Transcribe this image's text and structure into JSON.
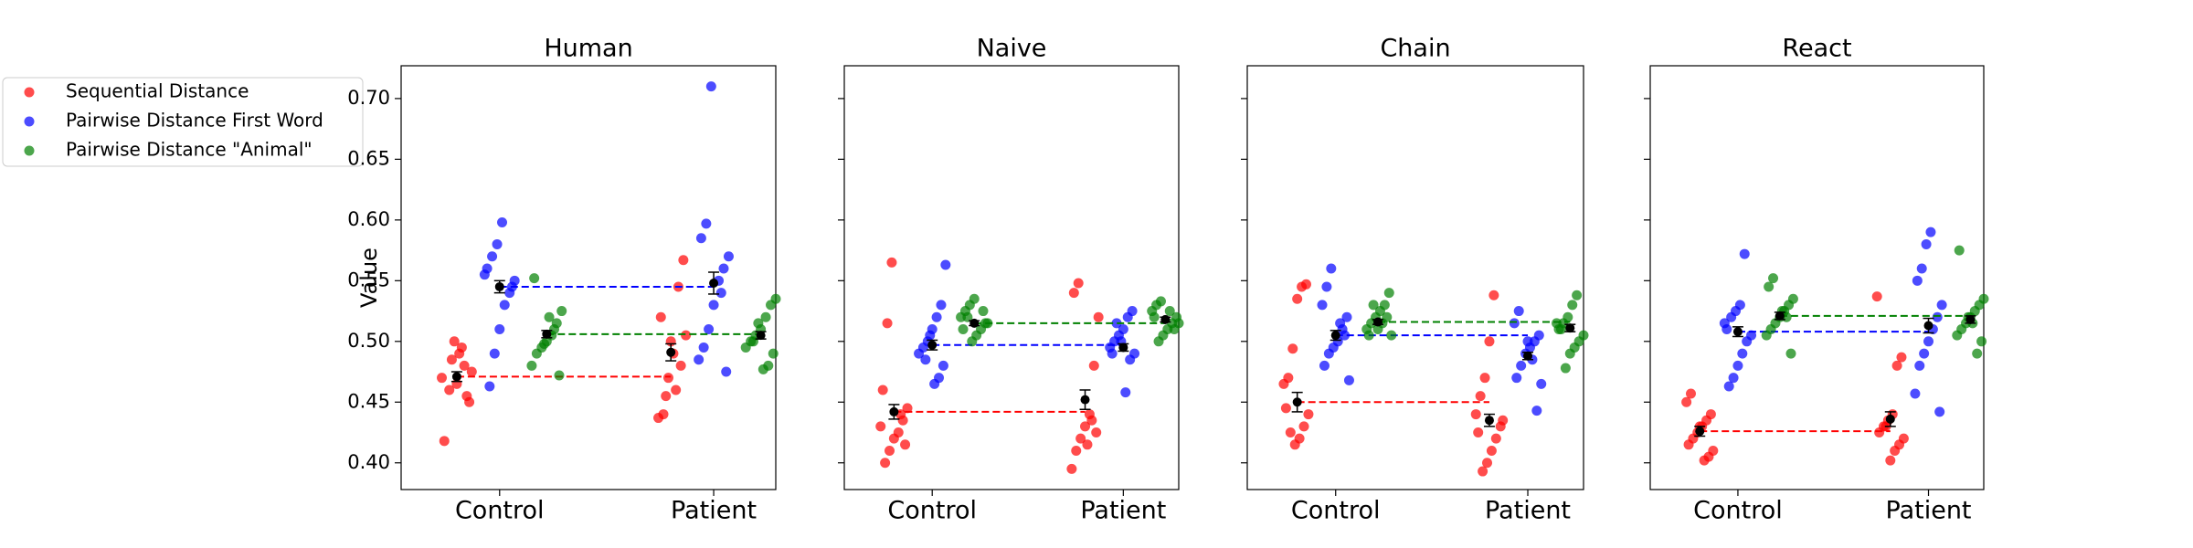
{
  "chart_data": {
    "type": "strip",
    "ylabel": "Value",
    "ylim": [
      0.378,
      0.727
    ],
    "yticks": [
      {
        "value": 0.4,
        "label": "0.40"
      },
      {
        "value": 0.45,
        "label": "0.45"
      },
      {
        "value": 0.5,
        "label": "0.50"
      },
      {
        "value": 0.55,
        "label": "0.55"
      },
      {
        "value": 0.6,
        "label": "0.60"
      },
      {
        "value": 0.65,
        "label": "0.65"
      },
      {
        "value": 0.7,
        "label": "0.70"
      }
    ],
    "categories": [
      "Control",
      "Patient"
    ],
    "legend": "outside upper left",
    "series": [
      {
        "name": "Sequential Distance",
        "color": "#ff0000"
      },
      {
        "name": "Pairwise Distance First Word",
        "color": "#0000ff"
      },
      {
        "name": "Pairwise Distance \"Animal\"",
        "color": "#008000"
      }
    ],
    "panels": [
      {
        "title": "Human",
        "series": [
          {
            "values": [
              [
                0.47,
                0.45,
                0.48,
                0.49,
                0.5,
                0.46,
                0.418,
                0.475,
                0.455,
                0.495,
                0.465,
                0.485
              ],
              [
                0.567,
                0.545,
                0.49,
                0.47,
                0.44,
                0.437,
                0.505,
                0.48,
                0.46,
                0.5,
                0.455,
                0.52
              ]
            ],
            "means": [
              0.471,
              0.491
            ],
            "errors": [
              0.004,
              0.007
            ]
          },
          {
            "values": [
              [
                0.598,
                0.58,
                0.57,
                0.56,
                0.55,
                0.54,
                0.53,
                0.51,
                0.49,
                0.463,
                0.555,
                0.545
              ],
              [
                0.71,
                0.597,
                0.585,
                0.57,
                0.56,
                0.55,
                0.53,
                0.51,
                0.495,
                0.485,
                0.475,
                0.54
              ]
            ],
            "means": [
              0.545,
              0.548
            ],
            "errors": [
              0.005,
              0.009
            ]
          },
          {
            "values": [
              [
                0.552,
                0.525,
                0.515,
                0.505,
                0.5,
                0.495,
                0.49,
                0.48,
                0.472,
                0.51,
                0.52,
                0.498
              ],
              [
                0.535,
                0.53,
                0.52,
                0.51,
                0.505,
                0.5,
                0.495,
                0.49,
                0.48,
                0.477,
                0.515,
                0.5
              ]
            ],
            "means": [
              0.506,
              0.505
            ],
            "errors": [
              0.003,
              0.003
            ]
          }
        ]
      },
      {
        "title": "Naive",
        "series": [
          {
            "values": [
              [
                0.565,
                0.515,
                0.46,
                0.445,
                0.435,
                0.425,
                0.42,
                0.41,
                0.4,
                0.43,
                0.415,
                0.44
              ],
              [
                0.548,
                0.54,
                0.52,
                0.48,
                0.44,
                0.43,
                0.42,
                0.41,
                0.395,
                0.425,
                0.435,
                0.415
              ]
            ],
            "means": [
              0.442,
              0.452
            ],
            "errors": [
              0.006,
              0.008
            ]
          },
          {
            "values": [
              [
                0.563,
                0.53,
                0.52,
                0.51,
                0.5,
                0.495,
                0.49,
                0.48,
                0.47,
                0.465,
                0.505,
                0.485
              ],
              [
                0.525,
                0.52,
                0.51,
                0.505,
                0.5,
                0.495,
                0.49,
                0.485,
                0.458,
                0.5,
                0.515,
                0.49
              ]
            ],
            "means": [
              0.497,
              0.495
            ],
            "errors": [
              0.004,
              0.003
            ]
          },
          {
            "values": [
              [
                0.535,
                0.53,
                0.525,
                0.52,
                0.515,
                0.51,
                0.505,
                0.5,
                0.52,
                0.51,
                0.515,
                0.525
              ],
              [
                0.533,
                0.53,
                0.525,
                0.52,
                0.515,
                0.51,
                0.505,
                0.5,
                0.52,
                0.515,
                0.51,
                0.525
              ]
            ],
            "means": [
              0.515,
              0.518
            ],
            "errors": [
              0.002,
              0.002
            ]
          }
        ]
      },
      {
        "title": "Chain",
        "series": [
          {
            "values": [
              [
                0.547,
                0.545,
                0.535,
                0.494,
                0.47,
                0.465,
                0.44,
                0.43,
                0.42,
                0.415,
                0.425,
                0.445
              ],
              [
                0.538,
                0.5,
                0.47,
                0.455,
                0.44,
                0.43,
                0.42,
                0.41,
                0.4,
                0.393,
                0.425,
                0.435
              ]
            ],
            "means": [
              0.45,
              0.435
            ],
            "errors": [
              0.008,
              0.005
            ]
          },
          {
            "values": [
              [
                0.56,
                0.545,
                0.53,
                0.52,
                0.51,
                0.5,
                0.495,
                0.49,
                0.48,
                0.468,
                0.505,
                0.515
              ],
              [
                0.525,
                0.515,
                0.505,
                0.5,
                0.495,
                0.49,
                0.48,
                0.47,
                0.465,
                0.443,
                0.485,
                0.5
              ]
            ],
            "means": [
              0.505,
              0.488
            ],
            "errors": [
              0.004,
              0.003
            ]
          },
          {
            "values": [
              [
                0.54,
                0.53,
                0.525,
                0.52,
                0.515,
                0.51,
                0.505,
                0.52,
                0.515,
                0.51,
                0.53,
                0.505
              ],
              [
                0.538,
                0.53,
                0.52,
                0.515,
                0.51,
                0.505,
                0.5,
                0.495,
                0.49,
                0.478,
                0.51,
                0.515
              ]
            ],
            "means": [
              0.516,
              0.511
            ],
            "errors": [
              0.002,
              0.003
            ]
          }
        ]
      },
      {
        "title": "React",
        "series": [
          {
            "values": [
              [
                0.457,
                0.45,
                0.44,
                0.435,
                0.43,
                0.425,
                0.42,
                0.415,
                0.41,
                0.405,
                0.402,
                0.43
              ],
              [
                0.537,
                0.487,
                0.48,
                0.44,
                0.435,
                0.43,
                0.425,
                0.42,
                0.415,
                0.41,
                0.402,
                0.43
              ]
            ],
            "means": [
              0.426,
              0.436
            ],
            "errors": [
              0.004,
              0.006
            ]
          },
          {
            "values": [
              [
                0.572,
                0.53,
                0.525,
                0.52,
                0.51,
                0.505,
                0.5,
                0.49,
                0.48,
                0.47,
                0.463,
                0.515
              ],
              [
                0.59,
                0.58,
                0.56,
                0.55,
                0.53,
                0.52,
                0.51,
                0.5,
                0.49,
                0.48,
                0.457,
                0.442
              ]
            ],
            "means": [
              0.508,
              0.513
            ],
            "errors": [
              0.004,
              0.006
            ]
          },
          {
            "values": [
              [
                0.552,
                0.545,
                0.535,
                0.53,
                0.525,
                0.52,
                0.515,
                0.51,
                0.505,
                0.49,
                0.52,
                0.525
              ],
              [
                0.575,
                0.535,
                0.53,
                0.525,
                0.52,
                0.515,
                0.51,
                0.505,
                0.5,
                0.49,
                0.515,
                0.52
              ]
            ],
            "means": [
              0.521,
              0.518
            ],
            "errors": [
              0.003,
              0.003
            ]
          }
        ]
      }
    ]
  }
}
